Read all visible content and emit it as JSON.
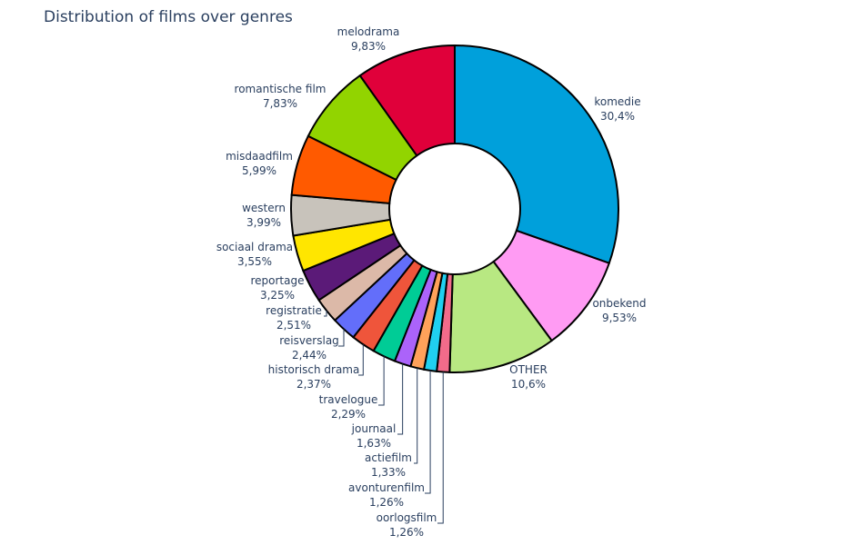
{
  "chart_data": {
    "type": "pie",
    "hole": true,
    "title": "Distribution of films over genres",
    "slices": [
      {
        "label": "komedie",
        "value": 30.4,
        "text": "30,4%",
        "color": "#00a0db"
      },
      {
        "label": "onbekend",
        "value": 9.53,
        "text": "9,53%",
        "color": "#ff9bf3"
      },
      {
        "label": "OTHER",
        "value": 10.6,
        "text": "10,6%",
        "color": "#b8e882"
      },
      {
        "label": "oorlogsfilm",
        "value": 1.26,
        "text": "1,26%",
        "color": "#f26b8a"
      },
      {
        "label": "avonturenfilm",
        "value": 1.26,
        "text": "1,26%",
        "color": "#20d0f0"
      },
      {
        "label": "actiefilm",
        "value": 1.33,
        "text": "1,33%",
        "color": "#ffa15a"
      },
      {
        "label": "journaal",
        "value": 1.63,
        "text": "1,63%",
        "color": "#ab63fa"
      },
      {
        "label": "travelogue",
        "value": 2.29,
        "text": "2,29%",
        "color": "#00cc96"
      },
      {
        "label": "historisch drama",
        "value": 2.37,
        "text": "2,37%",
        "color": "#ef553b"
      },
      {
        "label": "reisverslag",
        "value": 2.44,
        "text": "2,44%",
        "color": "#636efa"
      },
      {
        "label": "registratie",
        "value": 2.51,
        "text": "2,51%",
        "color": "#dcb9a8"
      },
      {
        "label": "reportage",
        "value": 3.25,
        "text": "3,25%",
        "color": "#5b1a78"
      },
      {
        "label": "sociaal drama",
        "value": 3.55,
        "text": "3,55%",
        "color": "#ffe600"
      },
      {
        "label": "western",
        "value": 3.99,
        "text": "3,99%",
        "color": "#c8c3bb"
      },
      {
        "label": "misdaadfilm",
        "value": 5.99,
        "text": "5,99%",
        "color": "#ff5a00"
      },
      {
        "label": "romantische film",
        "value": 7.83,
        "text": "7,83%",
        "color": "#92d400"
      },
      {
        "label": "melodrama",
        "value": 9.83,
        "text": "9,83%",
        "color": "#e0003a"
      }
    ]
  }
}
